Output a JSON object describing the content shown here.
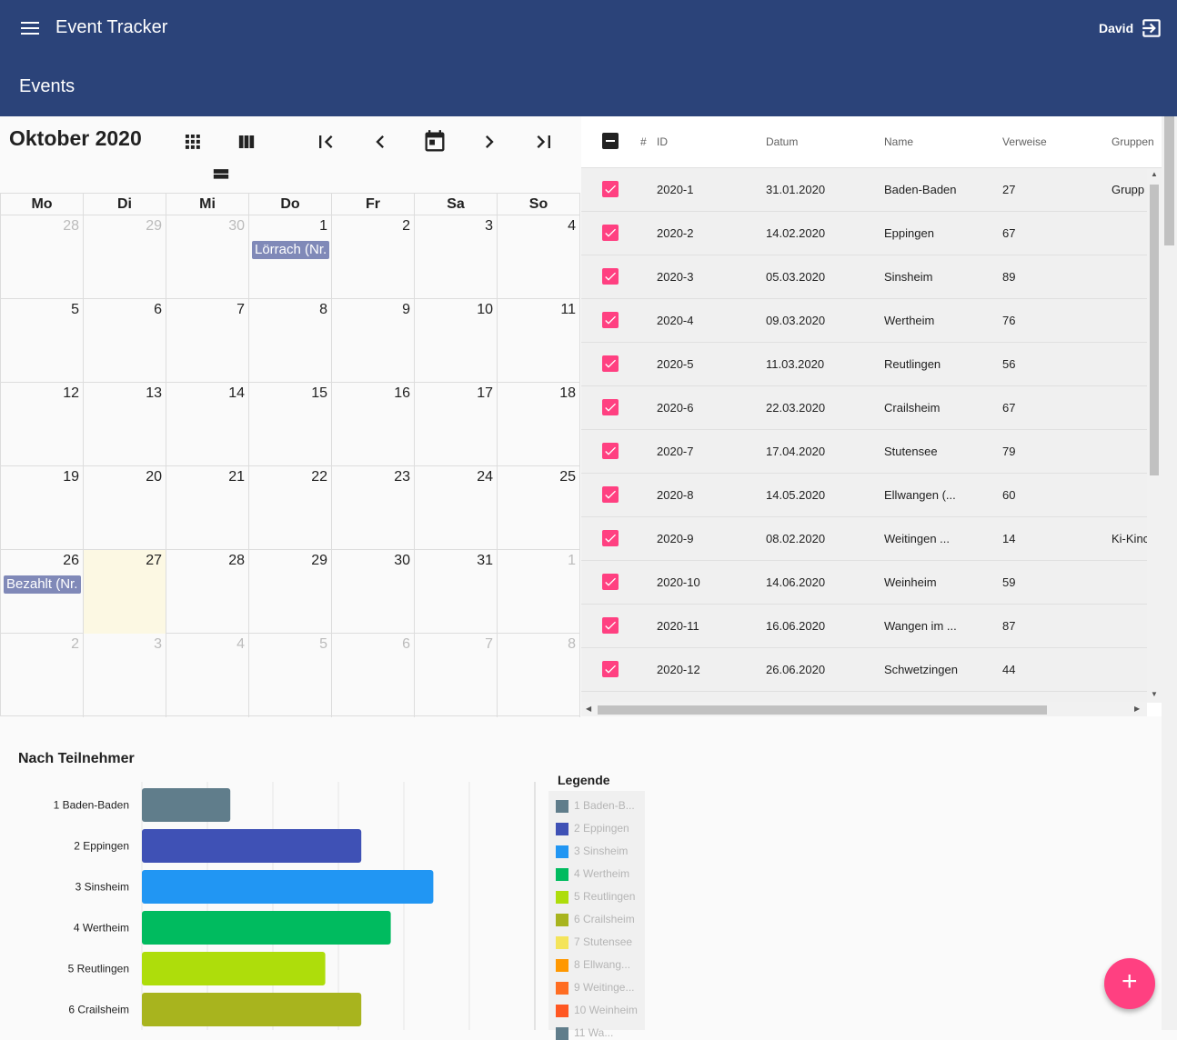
{
  "app": {
    "title": "Event Tracker",
    "user": "David",
    "page_title": "Events"
  },
  "calendar": {
    "title": "Oktober 2020",
    "weekdays": [
      "Mo",
      "Di",
      "Mi",
      "Do",
      "Fr",
      "Sa",
      "So"
    ],
    "weeks": [
      [
        {
          "d": "28",
          "o": true
        },
        {
          "d": "29",
          "o": true
        },
        {
          "d": "30",
          "o": true
        },
        {
          "d": "1",
          "ev": "Lörrach (Nr."
        },
        {
          "d": "2"
        },
        {
          "d": "3"
        },
        {
          "d": "4"
        }
      ],
      [
        {
          "d": "5"
        },
        {
          "d": "6"
        },
        {
          "d": "7"
        },
        {
          "d": "8"
        },
        {
          "d": "9"
        },
        {
          "d": "10"
        },
        {
          "d": "11"
        }
      ],
      [
        {
          "d": "12"
        },
        {
          "d": "13"
        },
        {
          "d": "14"
        },
        {
          "d": "15"
        },
        {
          "d": "16"
        },
        {
          "d": "17"
        },
        {
          "d": "18"
        }
      ],
      [
        {
          "d": "19"
        },
        {
          "d": "20"
        },
        {
          "d": "21"
        },
        {
          "d": "22"
        },
        {
          "d": "23"
        },
        {
          "d": "24"
        },
        {
          "d": "25"
        }
      ],
      [
        {
          "d": "26",
          "ev": "Bezahlt (Nr."
        },
        {
          "d": "27",
          "t": true
        },
        {
          "d": "28"
        },
        {
          "d": "29"
        },
        {
          "d": "30"
        },
        {
          "d": "31"
        },
        {
          "d": "1",
          "o": true
        }
      ],
      [
        {
          "d": "2",
          "o": true
        },
        {
          "d": "3",
          "o": true
        },
        {
          "d": "4",
          "o": true
        },
        {
          "d": "5",
          "o": true
        },
        {
          "d": "6",
          "o": true
        },
        {
          "d": "7",
          "o": true
        },
        {
          "d": "8",
          "o": true
        }
      ]
    ]
  },
  "table": {
    "headers": {
      "num": "#",
      "id": "ID",
      "datum": "Datum",
      "name": "Name",
      "verweise": "Verweise",
      "gruppen": "Gruppen"
    },
    "rows": [
      {
        "id": "2020-1",
        "datum": "31.01.2020",
        "name": "Baden-Baden",
        "verweise": "27",
        "gruppen": "Grupp"
      },
      {
        "id": "2020-2",
        "datum": "14.02.2020",
        "name": "Eppingen",
        "verweise": "67",
        "gruppen": ""
      },
      {
        "id": "2020-3",
        "datum": "05.03.2020",
        "name": "Sinsheim",
        "verweise": "89",
        "gruppen": ""
      },
      {
        "id": "2020-4",
        "datum": "09.03.2020",
        "name": "Wertheim",
        "verweise": "76",
        "gruppen": ""
      },
      {
        "id": "2020-5",
        "datum": "11.03.2020",
        "name": "Reutlingen",
        "verweise": "56",
        "gruppen": ""
      },
      {
        "id": "2020-6",
        "datum": "22.03.2020",
        "name": "Crailsheim",
        "verweise": "67",
        "gruppen": ""
      },
      {
        "id": "2020-7",
        "datum": "17.04.2020",
        "name": "Stutensee",
        "verweise": "79",
        "gruppen": ""
      },
      {
        "id": "2020-8",
        "datum": "14.05.2020",
        "name": "Ellwangen (...",
        "verweise": "60",
        "gruppen": ""
      },
      {
        "id": "2020-9",
        "datum": "08.02.2020",
        "name": "Weitingen ...",
        "verweise": "14",
        "gruppen": "Ki-Kinc"
      },
      {
        "id": "2020-10",
        "datum": "14.06.2020",
        "name": "Weinheim",
        "verweise": "59",
        "gruppen": ""
      },
      {
        "id": "2020-11",
        "datum": "16.06.2020",
        "name": "Wangen im ...",
        "verweise": "87",
        "gruppen": ""
      },
      {
        "id": "2020-12",
        "datum": "26.06.2020",
        "name": "Schwetzingen",
        "verweise": "44",
        "gruppen": ""
      }
    ]
  },
  "chart_data": {
    "type": "bar",
    "orientation": "horizontal",
    "title": "Nach Teilnehmer",
    "categories": [
      "1 Baden-Baden",
      "2 Eppingen",
      "3 Sinsheim",
      "4 Wertheim",
      "5 Reutlingen",
      "6 Crailsheim"
    ],
    "values": [
      27,
      67,
      89,
      76,
      56,
      67
    ],
    "colors": [
      "#607d8b",
      "#3f51b5",
      "#2196f3",
      "#00bb5f",
      "#aedd0b",
      "#a8b41e"
    ],
    "xlim": [
      0,
      120
    ],
    "grid": true,
    "legend_title": "Legende",
    "legend": [
      {
        "label": "1 Baden-B...",
        "color": "#607d8b"
      },
      {
        "label": "2 Eppingen",
        "color": "#3f51b5"
      },
      {
        "label": "3 Sinsheim",
        "color": "#2196f3"
      },
      {
        "label": "4 Wertheim",
        "color": "#00bb5f"
      },
      {
        "label": "5 Reutlingen",
        "color": "#aedd0b"
      },
      {
        "label": "6 Crailsheim",
        "color": "#a8b41e"
      },
      {
        "label": "7 Stutensee",
        "color": "#f4e45a"
      },
      {
        "label": "8 Ellwang...",
        "color": "#ff9800"
      },
      {
        "label": "9 Weitinge...",
        "color": "#ff6d22"
      },
      {
        "label": "10 Weinheim",
        "color": "#ff5722"
      },
      {
        "label": "11 Wa...",
        "color": "#607d8b"
      }
    ]
  },
  "fab": {
    "icon": "add-icon",
    "label": "+"
  }
}
